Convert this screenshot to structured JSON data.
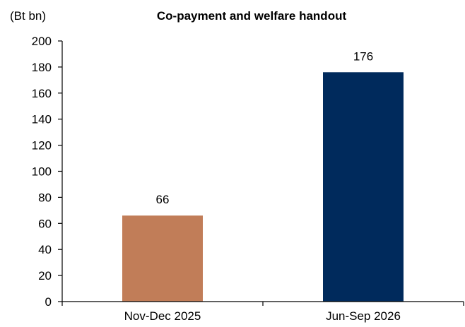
{
  "chart_data": {
    "type": "bar",
    "title": "Co-payment and welfare handout",
    "ylabel": "(Bt bn)",
    "xlabel": "",
    "categories": [
      "Nov-Dec 2025",
      "Jun-Sep 2026"
    ],
    "values": [
      66,
      176
    ],
    "data_labels": [
      "66",
      "176"
    ],
    "bar_colors": [
      "#C17D58",
      "#002A5C"
    ],
    "ylim": [
      0,
      200
    ],
    "y_ticks": [
      0,
      20,
      40,
      60,
      80,
      100,
      120,
      140,
      160,
      180,
      200
    ],
    "grid": false,
    "legend": "none"
  }
}
